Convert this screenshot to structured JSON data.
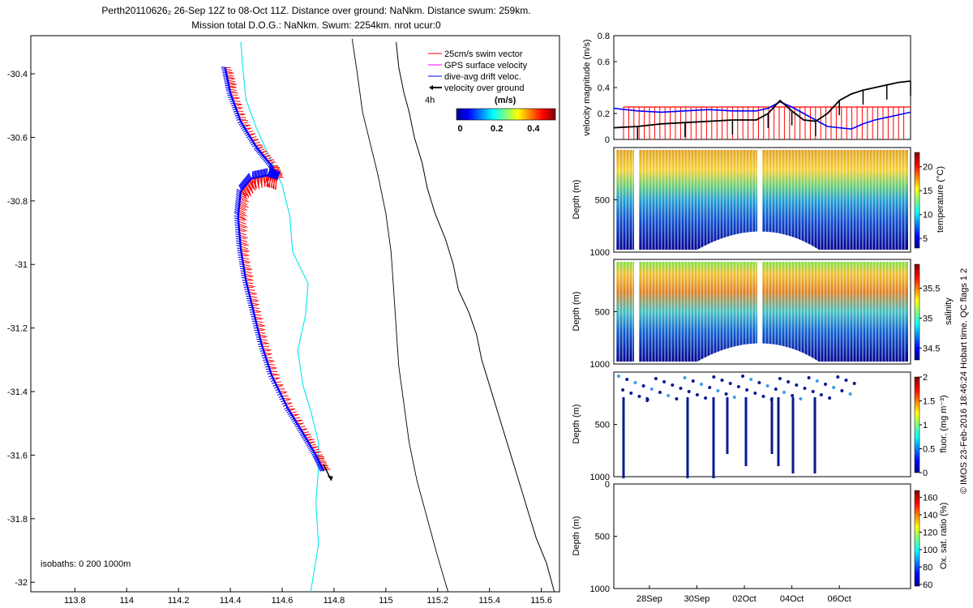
{
  "title": {
    "line1": "Perth20110626₂ 26-Sep 12Z to 08-Oct 11Z. Distance over ground: NaNkm. Distance swum: 259km.",
    "line2": "Mission total D.O.G.: NaNkm. Swum: 2254km. nrot ucur:0"
  },
  "watermark": "© IMOS 23-Feb-2016 18:46:24 Hobart time. QC flags 1  2",
  "colors": {
    "coast": "#000000",
    "isobath": "#00e5ee",
    "swim": "#ff0000",
    "gps": "#ff00ff",
    "drift": "#0000ff",
    "ground": "#000000"
  },
  "chart_data": [
    {
      "type": "line",
      "name": "map",
      "xlabel": "",
      "ylabel": "",
      "xlim": [
        113.63,
        115.67
      ],
      "ylim": [
        -32.03,
        -30.28
      ],
      "xticks": [
        "113.8",
        "114",
        "114.2",
        "114.4",
        "114.6",
        "114.8",
        "115",
        "115.2",
        "115.4",
        "115.6"
      ],
      "xtick_values": [
        113.8,
        114.0,
        114.2,
        114.4,
        114.6,
        114.8,
        115.0,
        115.2,
        115.4,
        115.6
      ],
      "yticks": [
        "-30.4",
        "-30.6",
        "-30.8",
        "-31",
        "-31.2",
        "-31.4",
        "-31.6",
        "-31.8",
        "-32"
      ],
      "ytick_values": [
        -30.4,
        -30.6,
        -30.8,
        -31.0,
        -31.2,
        -31.4,
        -31.6,
        -31.8,
        -32.0
      ],
      "legend": [
        {
          "label": "25cm/s swim vector",
          "color": "#ff0000"
        },
        {
          "label": "GPS surface velocity",
          "color": "#ff00ff"
        },
        {
          "label": "dive-avg drift veloc.",
          "color": "#0000ff"
        },
        {
          "label": "velocity over ground",
          "color": "#000000"
        }
      ],
      "legend_position": "top-right",
      "time_scale_label": "4h",
      "colorbar": {
        "label": "(m/s)",
        "ticks": [
          "0",
          "0.2",
          "0.4"
        ],
        "tick_values": [
          0,
          0.2,
          0.4
        ],
        "range": [
          -0.02,
          0.52
        ]
      },
      "isobaths_label": "isobaths: 0   200  1000m",
      "track": [
        {
          "lon": 114.38,
          "lat": -30.38
        },
        {
          "lon": 114.4,
          "lat": -30.46
        },
        {
          "lon": 114.44,
          "lat": -30.55
        },
        {
          "lon": 114.5,
          "lat": -30.63
        },
        {
          "lon": 114.56,
          "lat": -30.69
        },
        {
          "lon": 114.58,
          "lat": -30.73
        },
        {
          "lon": 114.54,
          "lat": -30.72
        },
        {
          "lon": 114.48,
          "lat": -30.73
        },
        {
          "lon": 114.44,
          "lat": -30.77
        },
        {
          "lon": 114.43,
          "lat": -30.85
        },
        {
          "lon": 114.44,
          "lat": -30.95
        },
        {
          "lon": 114.46,
          "lat": -31.05
        },
        {
          "lon": 114.49,
          "lat": -31.15
        },
        {
          "lon": 114.52,
          "lat": -31.25
        },
        {
          "lon": 114.56,
          "lat": -31.35
        },
        {
          "lon": 114.62,
          "lat": -31.45
        },
        {
          "lon": 114.68,
          "lat": -31.53
        },
        {
          "lon": 114.73,
          "lat": -31.6
        },
        {
          "lon": 114.76,
          "lat": -31.65
        }
      ],
      "ground_vector": {
        "from": [
          114.76,
          -31.63
        ],
        "to": [
          114.79,
          -31.68
        ]
      },
      "coastline": [
        {
          "lon": 115.04,
          "lat": -30.3
        },
        {
          "lon": 115.05,
          "lat": -30.38
        },
        {
          "lon": 115.07,
          "lat": -30.46
        },
        {
          "lon": 115.09,
          "lat": -30.52
        },
        {
          "lon": 115.11,
          "lat": -30.6
        },
        {
          "lon": 115.14,
          "lat": -30.68
        },
        {
          "lon": 115.16,
          "lat": -30.76
        },
        {
          "lon": 115.19,
          "lat": -30.84
        },
        {
          "lon": 115.23,
          "lat": -30.92
        },
        {
          "lon": 115.26,
          "lat": -31.0
        },
        {
          "lon": 115.28,
          "lat": -31.08
        },
        {
          "lon": 115.32,
          "lat": -31.15
        },
        {
          "lon": 115.35,
          "lat": -31.22
        },
        {
          "lon": 115.37,
          "lat": -31.3
        },
        {
          "lon": 115.4,
          "lat": -31.38
        },
        {
          "lon": 115.43,
          "lat": -31.46
        },
        {
          "lon": 115.46,
          "lat": -31.54
        },
        {
          "lon": 115.49,
          "lat": -31.62
        },
        {
          "lon": 115.52,
          "lat": -31.7
        },
        {
          "lon": 115.55,
          "lat": -31.78
        },
        {
          "lon": 115.58,
          "lat": -31.86
        },
        {
          "lon": 115.62,
          "lat": -31.94
        },
        {
          "lon": 115.65,
          "lat": -32.03
        }
      ],
      "isobath_200": [
        {
          "lon": 114.87,
          "lat": -30.29
        },
        {
          "lon": 114.89,
          "lat": -30.4
        },
        {
          "lon": 114.91,
          "lat": -30.52
        },
        {
          "lon": 114.94,
          "lat": -30.62
        },
        {
          "lon": 114.97,
          "lat": -30.72
        },
        {
          "lon": 115.0,
          "lat": -30.84
        },
        {
          "lon": 115.02,
          "lat": -30.96
        },
        {
          "lon": 115.03,
          "lat": -31.08
        },
        {
          "lon": 115.04,
          "lat": -31.2
        },
        {
          "lon": 115.05,
          "lat": -31.32
        },
        {
          "lon": 115.07,
          "lat": -31.44
        },
        {
          "lon": 115.09,
          "lat": -31.56
        },
        {
          "lon": 115.12,
          "lat": -31.68
        },
        {
          "lon": 115.16,
          "lat": -31.8
        },
        {
          "lon": 115.2,
          "lat": -31.92
        },
        {
          "lon": 115.24,
          "lat": -32.03
        }
      ],
      "isobath_1000": [
        {
          "lon": 114.44,
          "lat": -30.3
        },
        {
          "lon": 114.45,
          "lat": -30.4
        },
        {
          "lon": 114.46,
          "lat": -30.48
        },
        {
          "lon": 114.5,
          "lat": -30.57
        },
        {
          "lon": 114.55,
          "lat": -30.66
        },
        {
          "lon": 114.6,
          "lat": -30.75
        },
        {
          "lon": 114.63,
          "lat": -30.85
        },
        {
          "lon": 114.64,
          "lat": -30.96
        },
        {
          "lon": 114.7,
          "lat": -31.06
        },
        {
          "lon": 114.69,
          "lat": -31.16
        },
        {
          "lon": 114.66,
          "lat": -31.27
        },
        {
          "lon": 114.68,
          "lat": -31.38
        },
        {
          "lon": 114.71,
          "lat": -31.46
        },
        {
          "lon": 114.74,
          "lat": -31.56
        },
        {
          "lon": 114.74,
          "lat": -31.64
        },
        {
          "lon": 114.73,
          "lat": -31.75
        },
        {
          "lon": 114.74,
          "lat": -31.88
        },
        {
          "lon": 114.71,
          "lat": -32.03
        }
      ]
    },
    {
      "type": "line",
      "name": "velocity",
      "ylabel": "velocity magnitude (m/s)",
      "ylim": [
        0,
        0.8
      ],
      "yticks": [
        "0",
        "0.2",
        "0.4",
        "0.6",
        "0.8"
      ],
      "ytick_values": [
        0,
        0.2,
        0.4,
        0.6,
        0.8
      ],
      "xlim": [
        0,
        12.5
      ],
      "swim_speed": 0.25,
      "series": [
        {
          "name": "dive-avg drift",
          "color": "#0000ff",
          "x": [
            0,
            0.5,
            1,
            2,
            3,
            4,
            5,
            6,
            6.5,
            7,
            7.5,
            8,
            8.5,
            9,
            10,
            10.5,
            11,
            11.5,
            12,
            12.5
          ],
          "values": [
            0.24,
            0.23,
            0.22,
            0.21,
            0.22,
            0.23,
            0.22,
            0.22,
            0.24,
            0.29,
            0.25,
            0.2,
            0.15,
            0.1,
            0.08,
            0.12,
            0.15,
            0.17,
            0.19,
            0.21
          ]
        },
        {
          "name": "velocity over ground",
          "color": "#000000",
          "x": [
            0,
            1,
            2,
            3,
            4,
            5,
            6,
            6.5,
            7,
            7.5,
            8,
            8.5,
            9,
            9.5,
            10,
            10.5,
            11,
            11.5,
            12,
            12.5
          ],
          "values": [
            0.09,
            0.1,
            0.12,
            0.13,
            0.14,
            0.15,
            0.15,
            0.2,
            0.3,
            0.22,
            0.15,
            0.14,
            0.2,
            0.3,
            0.35,
            0.38,
            0.4,
            0.42,
            0.44,
            0.45
          ]
        }
      ]
    },
    {
      "type": "scatter",
      "name": "temperature",
      "ylabel": "Depth (m)",
      "yticks": [
        "500",
        "1000"
      ],
      "ytick_values": [
        500,
        1000
      ],
      "ylim": [
        0,
        1000
      ],
      "colorbar": {
        "label": "temperature (°C)",
        "ticks": [
          "5",
          "10",
          "15",
          "20"
        ],
        "tick_values": [
          5,
          10,
          15,
          20
        ],
        "range": [
          3,
          23
        ]
      }
    },
    {
      "type": "scatter",
      "name": "salinity",
      "ylabel": "Depth (m)",
      "yticks": [
        "500",
        "1000"
      ],
      "ytick_values": [
        500,
        1000
      ],
      "ylim": [
        0,
        1000
      ],
      "colorbar": {
        "label": "salinity",
        "ticks": [
          "34.5",
          "35",
          "35.5"
        ],
        "tick_values": [
          34.5,
          35,
          35.5
        ],
        "range": [
          34.3,
          35.9
        ]
      }
    },
    {
      "type": "scatter",
      "name": "fluorescence",
      "ylabel": "Depth (m)",
      "yticks": [
        "500",
        "1000"
      ],
      "ytick_values": [
        500,
        1000
      ],
      "ylim": [
        0,
        1000
      ],
      "colorbar": {
        "label": "fluor. (mg m⁻³)",
        "ticks": [
          "0",
          "0.5",
          "1",
          "1.5",
          "2"
        ],
        "tick_values": [
          0,
          0.5,
          1,
          1.5,
          2
        ],
        "range": [
          0,
          2
        ]
      }
    },
    {
      "type": "scatter",
      "name": "oxygen",
      "ylabel": "Depth (m)",
      "yticks": [
        "0",
        "500",
        "1000"
      ],
      "ytick_values": [
        0,
        500,
        1000
      ],
      "ylim": [
        0,
        1000
      ],
      "xticks": [
        "28Sep",
        "30Sep",
        "02Oct",
        "04Oct",
        "06Oct"
      ],
      "xtick_values": [
        1.5,
        3.5,
        5.5,
        7.5,
        9.5
      ],
      "colorbar": {
        "label": "Ox. sat. ratio (%)",
        "ticks": [
          "60",
          "80",
          "100",
          "120",
          "140",
          "160"
        ],
        "tick_values": [
          60,
          80,
          100,
          120,
          140,
          160
        ],
        "range": [
          58,
          168
        ]
      }
    }
  ]
}
